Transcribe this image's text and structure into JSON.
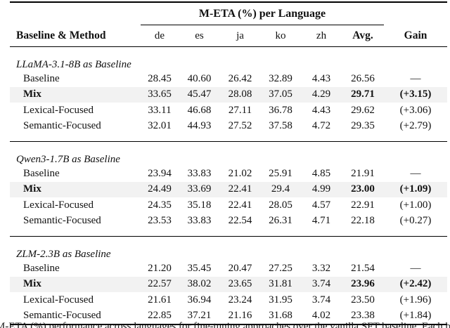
{
  "table": {
    "span_header": "M-ETA (%) per Language",
    "col_headers": {
      "method": "Baseline & Method",
      "langs": [
        "de",
        "es",
        "ja",
        "ko",
        "zh"
      ],
      "avg": "Avg.",
      "gain": "Gain"
    },
    "sections": [
      {
        "title": "LLaMA-3.1-8B as Baseline",
        "rows": [
          {
            "method": "Baseline",
            "values": [
              "28.45",
              "40.60",
              "26.42",
              "32.89",
              "4.43"
            ],
            "avg": "26.56",
            "gain": "—",
            "highlight": false
          },
          {
            "method": "Mix",
            "values": [
              "33.65",
              "45.47",
              "28.08",
              "37.05",
              "4.29"
            ],
            "avg": "29.71",
            "gain": "(+3.15)",
            "highlight": true
          },
          {
            "method": "Lexical-Focused",
            "values": [
              "33.11",
              "46.68",
              "27.11",
              "36.78",
              "4.43"
            ],
            "avg": "29.62",
            "gain": "(+3.06)",
            "highlight": false
          },
          {
            "method": "Semantic-Focused",
            "values": [
              "32.01",
              "44.93",
              "27.52",
              "37.58",
              "4.72"
            ],
            "avg": "29.35",
            "gain": "(+2.79)",
            "highlight": false
          }
        ]
      },
      {
        "title": "Qwen3-1.7B as Baseline",
        "rows": [
          {
            "method": "Baseline",
            "values": [
              "23.94",
              "33.83",
              "21.02",
              "25.91",
              "4.85"
            ],
            "avg": "21.91",
            "gain": "—",
            "highlight": false
          },
          {
            "method": "Mix",
            "values": [
              "24.49",
              "33.69",
              "22.41",
              "29.4",
              "4.99"
            ],
            "avg": "23.00",
            "gain": "(+1.09)",
            "highlight": true
          },
          {
            "method": "Lexical-Focused",
            "values": [
              "24.35",
              "35.18",
              "22.41",
              "28.05",
              "4.57"
            ],
            "avg": "22.91",
            "gain": "(+1.00)",
            "highlight": false
          },
          {
            "method": "Semantic-Focused",
            "values": [
              "23.53",
              "33.83",
              "22.54",
              "26.31",
              "4.71"
            ],
            "avg": "22.18",
            "gain": "(+0.27)",
            "highlight": false
          }
        ]
      },
      {
        "title": "ZLM-2.3B as Baseline",
        "rows": [
          {
            "method": "Baseline",
            "values": [
              "21.20",
              "35.45",
              "20.47",
              "27.25",
              "3.32"
            ],
            "avg": "21.54",
            "gain": "—",
            "highlight": false
          },
          {
            "method": "Mix",
            "values": [
              "22.57",
              "38.02",
              "23.65",
              "31.81",
              "3.74"
            ],
            "avg": "23.96",
            "gain": "(+2.42)",
            "highlight": true
          },
          {
            "method": "Lexical-Focused",
            "values": [
              "21.61",
              "36.94",
              "23.24",
              "31.95",
              "3.74"
            ],
            "avg": "23.50",
            "gain": "(+1.96)",
            "highlight": false
          },
          {
            "method": "Semantic-Focused",
            "values": [
              "22.85",
              "37.21",
              "21.16",
              "31.68",
              "4.02"
            ],
            "avg": "23.38",
            "gain": "(+1.84)",
            "highlight": false
          }
        ]
      }
    ]
  },
  "caption_fragment": "M-ETA (%) performance across languages for fine-tuning approaches over the vanilla SFT baseline. Each bold",
  "colors": {
    "highlight_row_bg": "#f2f2f2",
    "rule": "#000000",
    "text": "#111111",
    "background": "#ffffff"
  }
}
